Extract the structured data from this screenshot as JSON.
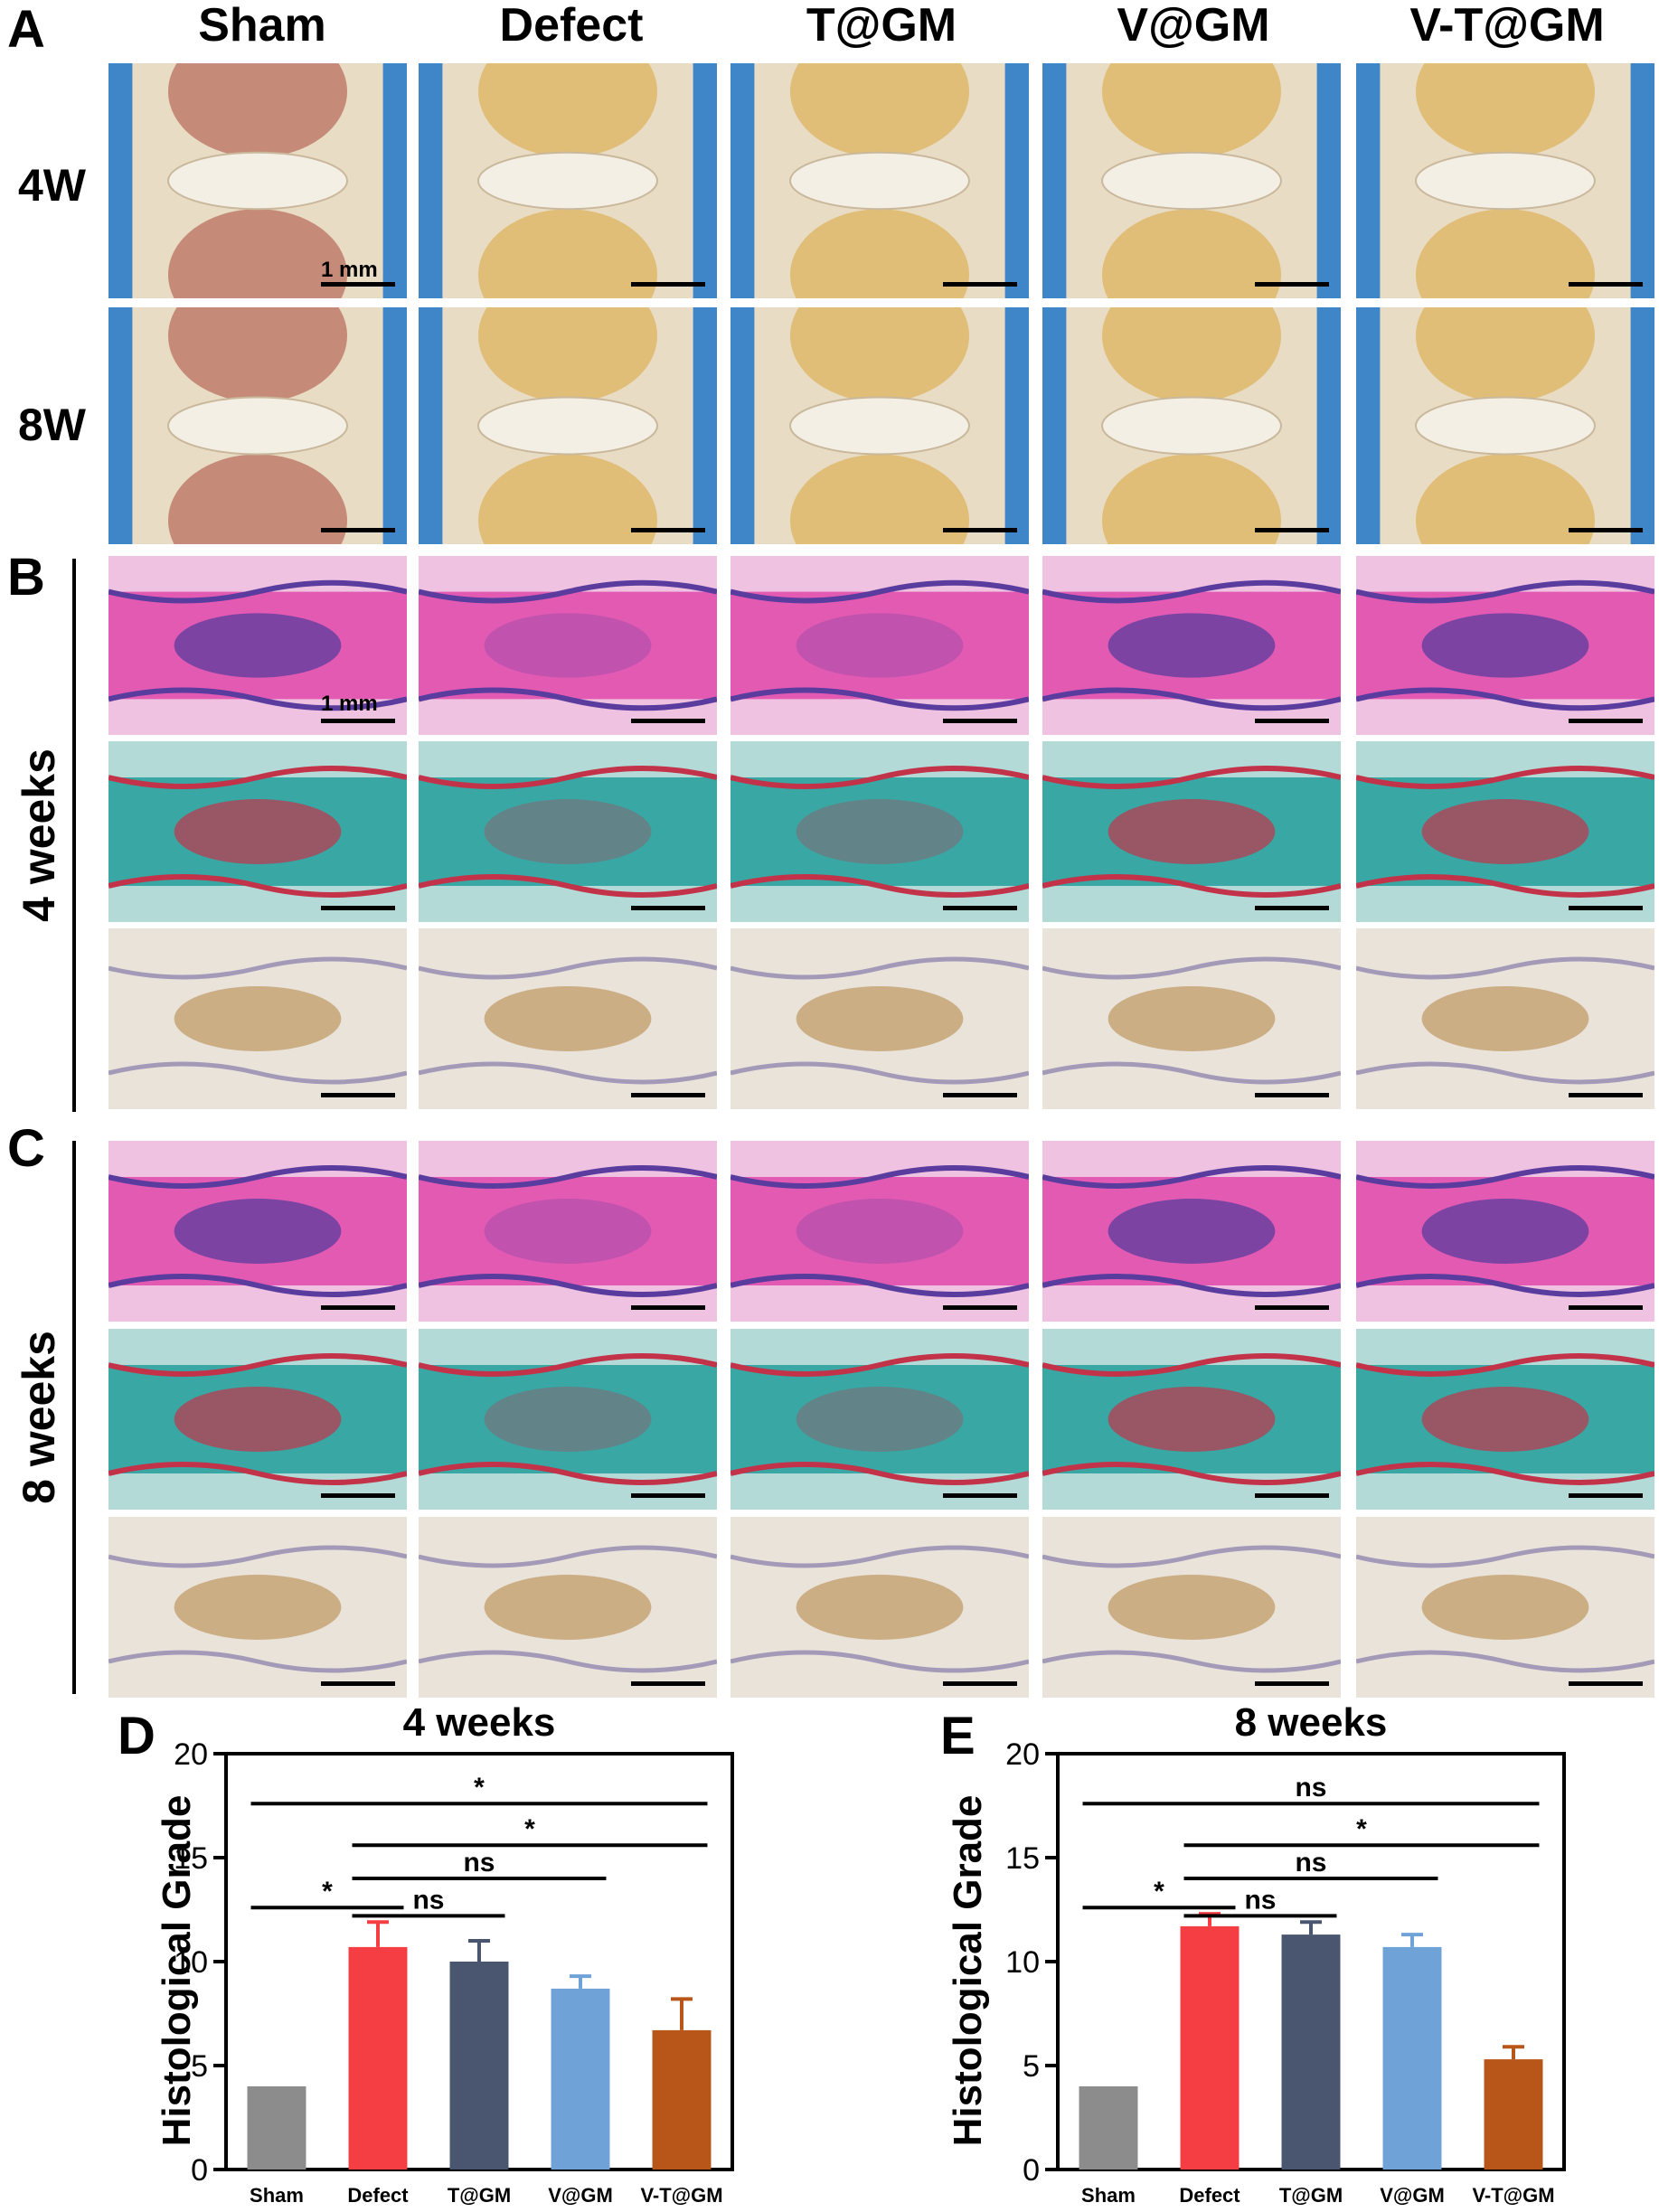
{
  "panelA": {
    "letter": "A",
    "columns": [
      "Sham",
      "Defect",
      "T@GM",
      "V@GM",
      "V-T@GM"
    ],
    "rows": [
      "4W",
      "8W"
    ],
    "scale_label": "1 mm"
  },
  "panelB": {
    "letter": "B",
    "label": "4 weeks",
    "scale_label": "1 mm"
  },
  "panelC": {
    "letter": "C",
    "label": "8 weeks"
  },
  "tile_colors": {
    "photo_bg": "#3f86c9",
    "photo_tissue": "#e9dcc4",
    "photo_yellow": "#d9a53a",
    "photo_red": "#a8483a",
    "he_pink": "#e35ab3",
    "he_purple": "#5a3c9e",
    "he_white": "#f3eef5",
    "safo_teal": "#39a7a3",
    "safo_red": "#c2334a",
    "ihc_bg": "#e9e3da",
    "ihc_brown": "#b98a4c"
  },
  "chart_data": [
    {
      "panel": "D",
      "type": "bar",
      "title": "4 weeks",
      "xlabel": "",
      "ylabel": "Histological Grade",
      "ylim": [
        0,
        20
      ],
      "yticks": [
        0,
        5,
        10,
        15,
        20
      ],
      "categories": [
        "Sham",
        "Defect",
        "T@GM",
        "V@GM",
        "V-T@GM"
      ],
      "values": [
        4.0,
        10.7,
        10.0,
        8.7,
        6.7
      ],
      "errors": [
        0,
        1.2,
        1.0,
        0.6,
        1.5
      ],
      "colors": [
        "#8c8c8c",
        "#f53d44",
        "#4a5670",
        "#6fa3d8",
        "#b8561a"
      ],
      "significance": [
        {
          "from": 0,
          "to": 4,
          "label": "*",
          "y": 17.6
        },
        {
          "from": 1,
          "to": 4,
          "label": "*",
          "y": 15.6
        },
        {
          "from": 1,
          "to": 3,
          "label": "ns",
          "y": 14.0
        },
        {
          "from": 1,
          "to": 2,
          "label": "ns",
          "y": 12.2
        },
        {
          "from": 0,
          "to": 1,
          "label": "*",
          "y": 12.6
        }
      ]
    },
    {
      "panel": "E",
      "type": "bar",
      "title": "8  weeks",
      "xlabel": "",
      "ylabel": "Histological Grade",
      "ylim": [
        0,
        20
      ],
      "yticks": [
        0,
        5,
        10,
        15,
        20
      ],
      "categories": [
        "Sham",
        "Defect",
        "T@GM",
        "V@GM",
        "V-T@GM"
      ],
      "values": [
        4.0,
        11.7,
        11.3,
        10.7,
        5.3
      ],
      "errors": [
        0,
        0.6,
        0.6,
        0.6,
        0.6
      ],
      "colors": [
        "#8c8c8c",
        "#f53d44",
        "#4a5670",
        "#6fa3d8",
        "#b8561a"
      ],
      "significance": [
        {
          "from": 0,
          "to": 4,
          "label": "ns",
          "y": 17.6
        },
        {
          "from": 1,
          "to": 4,
          "label": "*",
          "y": 15.6
        },
        {
          "from": 1,
          "to": 3,
          "label": "ns",
          "y": 14.0
        },
        {
          "from": 1,
          "to": 2,
          "label": "ns",
          "y": 12.2
        },
        {
          "from": 0,
          "to": 1,
          "label": "*",
          "y": 12.6
        }
      ]
    }
  ]
}
